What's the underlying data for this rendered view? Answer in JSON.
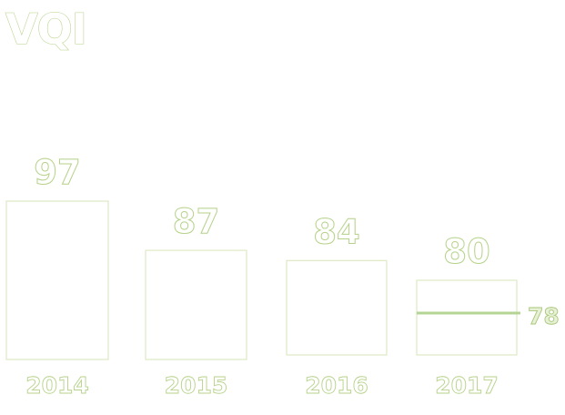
{
  "chart_data": {
    "type": "bar",
    "title": "VQI",
    "categories": [
      "2014",
      "2015",
      "2016",
      "2017"
    ],
    "values": [
      97,
      87,
      84,
      80
    ],
    "target": {
      "category": "2017",
      "value": 78
    },
    "ylim": [
      0,
      100
    ],
    "grid": false,
    "legend": "none",
    "colors": {
      "text_fill": "#ffffff",
      "text_outline": "#b6d28a",
      "bar_outline": "#dde9c4",
      "target_line": "#b4d494"
    }
  }
}
